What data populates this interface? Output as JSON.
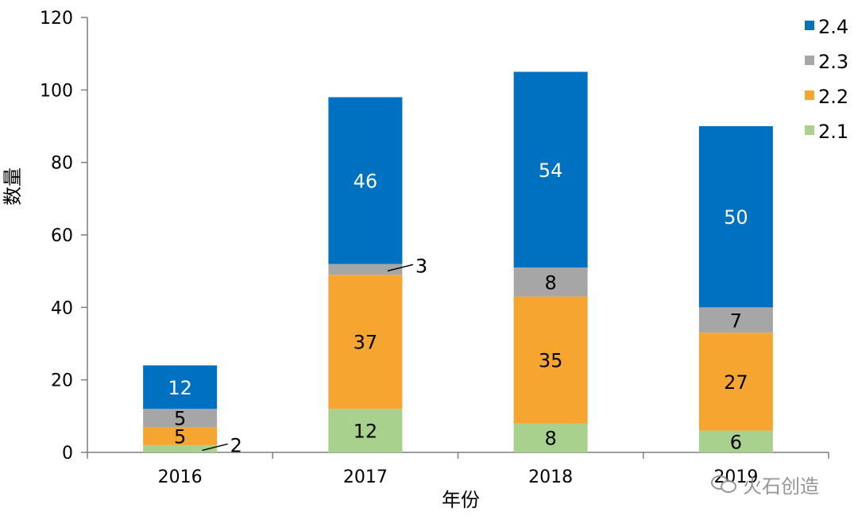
{
  "chart_data": {
    "type": "bar",
    "stacked": true,
    "categories": [
      "2016",
      "2017",
      "2018",
      "2019"
    ],
    "series": [
      {
        "name": "2.1",
        "values": [
          2,
          12,
          8,
          6
        ],
        "color": "#a9d18e"
      },
      {
        "name": "2.2",
        "values": [
          5,
          37,
          35,
          27
        ],
        "color": "#f7a531"
      },
      {
        "name": "2.3",
        "values": [
          5,
          3,
          8,
          7
        ],
        "color": "#a6a6a6"
      },
      {
        "name": "2.4",
        "values": [
          12,
          46,
          54,
          50
        ],
        "color": "#0070c0"
      }
    ],
    "totals": [
      24,
      98,
      105,
      90
    ],
    "xlabel": "年份",
    "ylabel": "数量",
    "ylim": [
      0,
      120
    ],
    "yticks": [
      "0",
      "20",
      "40",
      "60",
      "80",
      "100",
      "120"
    ],
    "legend_order": [
      "2.4",
      "2.3",
      "2.2",
      "2.1"
    ],
    "legend_position": "top-right",
    "grid": false
  },
  "watermark": {
    "text": "火石创造"
  }
}
